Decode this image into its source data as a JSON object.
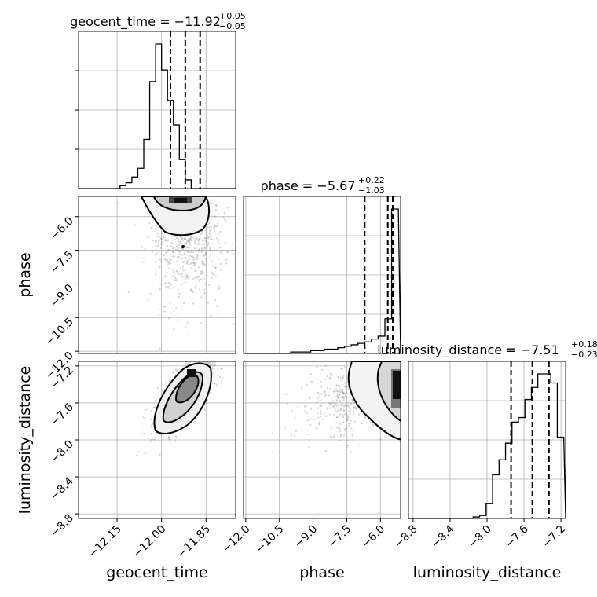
{
  "chart_data": {
    "type": "corner",
    "parameters": [
      "geocent_time",
      "phase",
      "luminosity_distance"
    ],
    "axis_labels": [
      "geocent_time",
      "phase",
      "luminosity_distance"
    ],
    "titles": [
      {
        "param": "geocent_time",
        "text": "geocent_time = −11.92",
        "sup": "+0.05",
        "sub": "−0.05"
      },
      {
        "param": "phase",
        "text": "phase = −5.67",
        "sup": "+0.22",
        "sub": "−1.03"
      },
      {
        "param": "luminosity_distance",
        "text": "luminosity_distance = −7.51",
        "sup": "+0.18",
        "sub": "−0.23"
      }
    ],
    "ranges": {
      "geocent_time": [
        -12.28,
        -11.75
      ],
      "phase": [
        -12.1,
        -5.1
      ],
      "luminosity_distance": [
        -8.85,
        -7.15
      ]
    },
    "ticks": {
      "geocent_time": {
        "values": [
          -12.15,
          -12.0,
          -11.85
        ],
        "labels": [
          "−12.15",
          "−12.00",
          "−11.85"
        ]
      },
      "phase": {
        "values": [
          -12.0,
          -10.5,
          -9.0,
          -7.5,
          -6.0
        ],
        "labels": [
          "−12.0",
          "−10.5",
          "−9.0",
          "−7.5",
          "−6.0"
        ]
      },
      "luminosity_distance": {
        "values": [
          -8.8,
          -8.4,
          -8.0,
          -7.6,
          -7.2
        ],
        "labels": [
          "−8.8",
          "−8.4",
          "−8.0",
          "−7.6",
          "−7.2"
        ]
      },
      "phase_y": {
        "values": [
          -6.0,
          -7.5,
          -9.0,
          -10.5,
          -12.0
        ],
        "labels": [
          "−6.0",
          "−7.5",
          "−9.0",
          "−10.5",
          "−12.0"
        ]
      },
      "luminosity_distance_y": {
        "values": [
          -7.2,
          -7.6,
          -8.0,
          -8.4,
          -8.8
        ],
        "labels": [
          "−7.2",
          "−7.6",
          "−8.0",
          "−8.4",
          "−8.8"
        ]
      }
    },
    "quantiles": {
      "geocent_time": [
        -11.97,
        -11.92,
        -11.87
      ],
      "phase": [
        -6.7,
        -5.67,
        -5.45
      ],
      "luminosity_distance": [
        -7.74,
        -7.51,
        -7.33
      ]
    },
    "histograms": {
      "geocent_time": {
        "edges": [
          -12.28,
          -12.26,
          -12.24,
          -12.22,
          -12.2,
          -12.18,
          -12.16,
          -12.14,
          -12.12,
          -12.1,
          -12.08,
          -12.06,
          -12.04,
          -12.02,
          -12.0,
          -11.98,
          -11.96,
          -11.94,
          -11.92,
          -11.9,
          -11.88,
          -11.86,
          -11.84,
          -11.82,
          -11.8,
          -11.78
        ],
        "counts": [
          0,
          0,
          0,
          0,
          0,
          0,
          0,
          2,
          4,
          8,
          14,
          34,
          74,
          100,
          82,
          61,
          44,
          20,
          6,
          0,
          0,
          0,
          0,
          0,
          0
        ]
      },
      "phase": {
        "edges": [
          -12.1,
          -11.8,
          -11.5,
          -11.2,
          -10.9,
          -10.6,
          -10.3,
          -10.0,
          -9.7,
          -9.4,
          -9.1,
          -8.8,
          -8.5,
          -8.2,
          -7.9,
          -7.6,
          -7.3,
          -7.0,
          -6.7,
          -6.4,
          -6.1,
          -5.8,
          -5.5,
          -5.2
        ],
        "counts": [
          0,
          0,
          0,
          0,
          0,
          0,
          0,
          1,
          1,
          1,
          2,
          2,
          3,
          3,
          4,
          5,
          6,
          7,
          8,
          10,
          12,
          24,
          100
        ]
      },
      "luminosity_distance": {
        "edges": [
          -8.85,
          -8.78,
          -8.71,
          -8.64,
          -8.57,
          -8.5,
          -8.43,
          -8.36,
          -8.29,
          -8.22,
          -8.15,
          -8.08,
          -8.01,
          -7.94,
          -7.87,
          -7.8,
          -7.73,
          -7.66,
          -7.59,
          -7.52,
          -7.45,
          -7.38,
          -7.31,
          -7.24,
          -7.17
        ],
        "counts": [
          0,
          0,
          0,
          0,
          0,
          0,
          0,
          0,
          0,
          0,
          1,
          2,
          10,
          29,
          39,
          50,
          64,
          67,
          79,
          87,
          96,
          96,
          90,
          54
        ]
      }
    },
    "scatter_centers": {
      "phase_vs_geocent_time": {
        "mean": [
          -11.915,
          -6.6
        ],
        "sd": [
          0.06,
          1.6
        ]
      },
      "luminosity_distance_vs_geocent_time": {
        "mean": [
          -11.92,
          -7.5
        ],
        "sd": [
          0.045,
          0.2
        ],
        "corr": 0.75
      },
      "luminosity_distance_vs_phase": {
        "mean": [
          -6.0,
          -7.45
        ],
        "sd": [
          1.6,
          0.22
        ],
        "corr": 0.55
      }
    },
    "grid": true,
    "colors": {
      "hist": "#000000",
      "scatter": "#808080",
      "grid": "#b0b0b0",
      "quantile": "#000000"
    }
  }
}
